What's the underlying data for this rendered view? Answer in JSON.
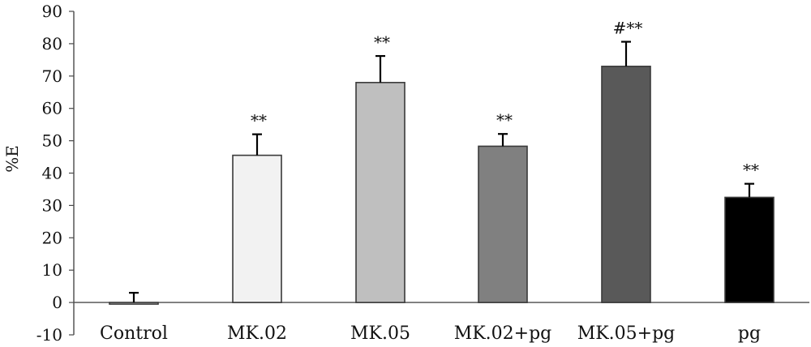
{
  "chart_data": {
    "type": "bar",
    "title": "",
    "xlabel": "",
    "ylabel": "%E",
    "ylim": [
      -10,
      90
    ],
    "yticks": [
      -10,
      0,
      10,
      20,
      30,
      40,
      50,
      60,
      70,
      80,
      90
    ],
    "grid": false,
    "categories": [
      "Control",
      "MK.02",
      "MK.05",
      "MK.02+pg",
      "MK.05+pg",
      "pg"
    ],
    "values": [
      -0.5,
      45.5,
      68,
      48.3,
      73,
      32.5
    ],
    "error_upper": [
      3.5,
      6.5,
      8.2,
      3.8,
      7.6,
      4.2
    ],
    "annotations": [
      "",
      "**",
      "**",
      "**",
      "#**",
      "**"
    ],
    "colors": [
      "#d9d9d9",
      "#f2f2f2",
      "#bfbfbf",
      "#808080",
      "#595959",
      "#000000"
    ],
    "edge_color": "#3a3a3a"
  }
}
